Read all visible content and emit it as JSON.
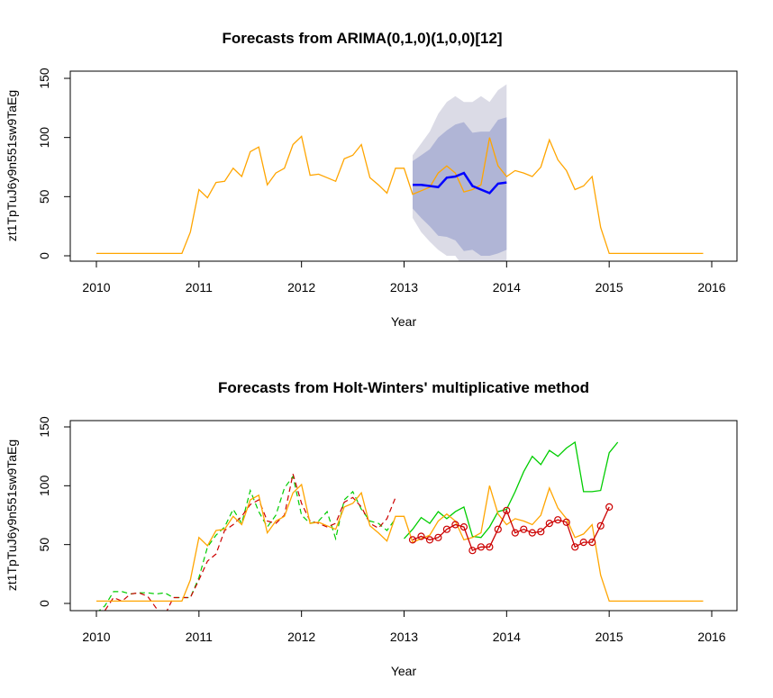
{
  "colors": {
    "actual": "#FFA500",
    "forecast": "#0000FF",
    "band95": "#DBDBE6",
    "band80": "#B0B5D6",
    "hw_fitted": "#00CD00",
    "hw_red": "#CC0000"
  },
  "chart_data": [
    {
      "type": "line",
      "title": "Forecasts from ARIMA(0,1,0)(1,0,0)[12]",
      "xlabel": "Year",
      "ylabel": "zt1TpTuJ6y9n551sw9TaEg",
      "xlim": [
        2010,
        2016
      ],
      "ylim": [
        0,
        150
      ],
      "x_ticks": [
        "2010",
        "2011",
        "2012",
        "2013",
        "2014",
        "2015",
        "2016"
      ],
      "y_ticks": [
        "0",
        "50",
        "100",
        "150"
      ],
      "grid": false,
      "series": [
        {
          "role": "actual",
          "x_start": 2010,
          "freq": 12,
          "values": [
            2,
            2,
            2,
            2,
            2,
            2,
            2,
            2,
            2,
            2,
            2,
            20,
            56,
            49,
            62,
            63,
            74,
            67,
            88,
            92,
            60,
            70,
            74,
            94,
            101,
            68,
            69,
            66,
            63,
            82,
            85,
            94,
            66,
            60,
            53,
            74,
            74,
            52,
            55,
            58,
            70,
            76,
            70,
            54,
            56,
            60,
            100,
            76,
            67,
            72,
            70,
            67,
            75,
            98,
            81,
            72,
            56,
            59,
            67,
            24,
            2,
            2,
            2,
            2,
            2,
            2,
            2,
            2,
            2,
            2,
            2,
            2
          ]
        },
        {
          "role": "forecast",
          "x_start": 2013.0833,
          "freq": 12,
          "values": [
            60,
            60,
            59,
            58,
            66,
            67,
            70,
            59,
            56,
            53,
            61,
            62
          ]
        }
      ],
      "intervals": {
        "x_start": 2013.0833,
        "freq": 12,
        "lo80": [
          40,
          32,
          25,
          17,
          16,
          13,
          4,
          5,
          0,
          0,
          2,
          5
        ],
        "hi80": [
          80,
          85,
          90,
          100,
          106,
          111,
          113,
          104,
          105,
          105,
          115,
          117
        ],
        "lo95": [
          32,
          20,
          12,
          5,
          0,
          0,
          -10,
          -10,
          -15,
          -15,
          -12,
          -10
        ],
        "hi95": [
          85,
          95,
          105,
          120,
          130,
          135,
          130,
          130,
          135,
          130,
          140,
          145
        ]
      }
    },
    {
      "type": "line",
      "title": "Forecasts from Holt-Winters' multiplicative method",
      "xlabel": "Year",
      "ylabel": "zt1TpTuJ6y9n551sw9TaEg",
      "xlim": [
        2010,
        2016
      ],
      "ylim": [
        0,
        150
      ],
      "x_ticks": [
        "2010",
        "2011",
        "2012",
        "2013",
        "2014",
        "2015",
        "2016"
      ],
      "y_ticks": [
        "0",
        "50",
        "100",
        "150"
      ],
      "grid": false,
      "series": [
        {
          "role": "actual",
          "x_start": 2010,
          "freq": 12,
          "values": [
            2,
            2,
            2,
            2,
            2,
            2,
            2,
            2,
            2,
            2,
            2,
            20,
            56,
            49,
            62,
            63,
            74,
            67,
            88,
            92,
            60,
            70,
            74,
            94,
            101,
            68,
            69,
            66,
            63,
            82,
            85,
            94,
            66,
            60,
            53,
            74,
            74,
            52,
            55,
            58,
            70,
            76,
            70,
            54,
            56,
            60,
            100,
            76,
            67,
            72,
            70,
            67,
            75,
            98,
            81,
            72,
            56,
            59,
            67,
            24,
            2,
            2,
            2,
            2,
            2,
            2,
            2,
            2,
            2,
            2,
            2,
            2
          ]
        },
        {
          "role": "fitted-green-dashed",
          "x_start": 2010,
          "freq": 12,
          "values": [
            -8,
            -2,
            10,
            10,
            8,
            9,
            9,
            8,
            9,
            5,
            5,
            5,
            22,
            48,
            58,
            65,
            80,
            68,
            96,
            78,
            65,
            75,
            98,
            108,
            75,
            68,
            70,
            78,
            55,
            88,
            95,
            80,
            70,
            68,
            62,
            72
          ]
        },
        {
          "role": "fitted-red-dashed",
          "x_start": 2010,
          "freq": 12,
          "values": [
            -8,
            -6,
            5,
            2,
            8,
            9,
            6,
            -4,
            -10,
            5,
            5,
            5,
            20,
            36,
            42,
            62,
            67,
            74,
            84,
            88,
            70,
            68,
            75,
            110,
            85,
            70,
            68,
            65,
            68,
            86,
            90,
            82,
            68,
            64,
            72,
            90
          ]
        },
        {
          "role": "hw-green",
          "x_start": 2013.0,
          "freq": 12,
          "values": [
            55,
            63,
            73,
            68,
            78,
            72,
            78,
            82,
            57,
            56,
            65,
            78,
            80,
            95,
            112,
            125,
            118,
            130,
            125,
            132,
            137,
            95,
            95,
            96,
            128,
            137
          ]
        },
        {
          "role": "hw-red",
          "x_start": 2013.0833,
          "freq": 12,
          "values": [
            54,
            57,
            54,
            56,
            63,
            67,
            65,
            45,
            48,
            48,
            63,
            79,
            60,
            63,
            60,
            61,
            68,
            71,
            69,
            48,
            52,
            52,
            66,
            82
          ]
        }
      ]
    }
  ]
}
